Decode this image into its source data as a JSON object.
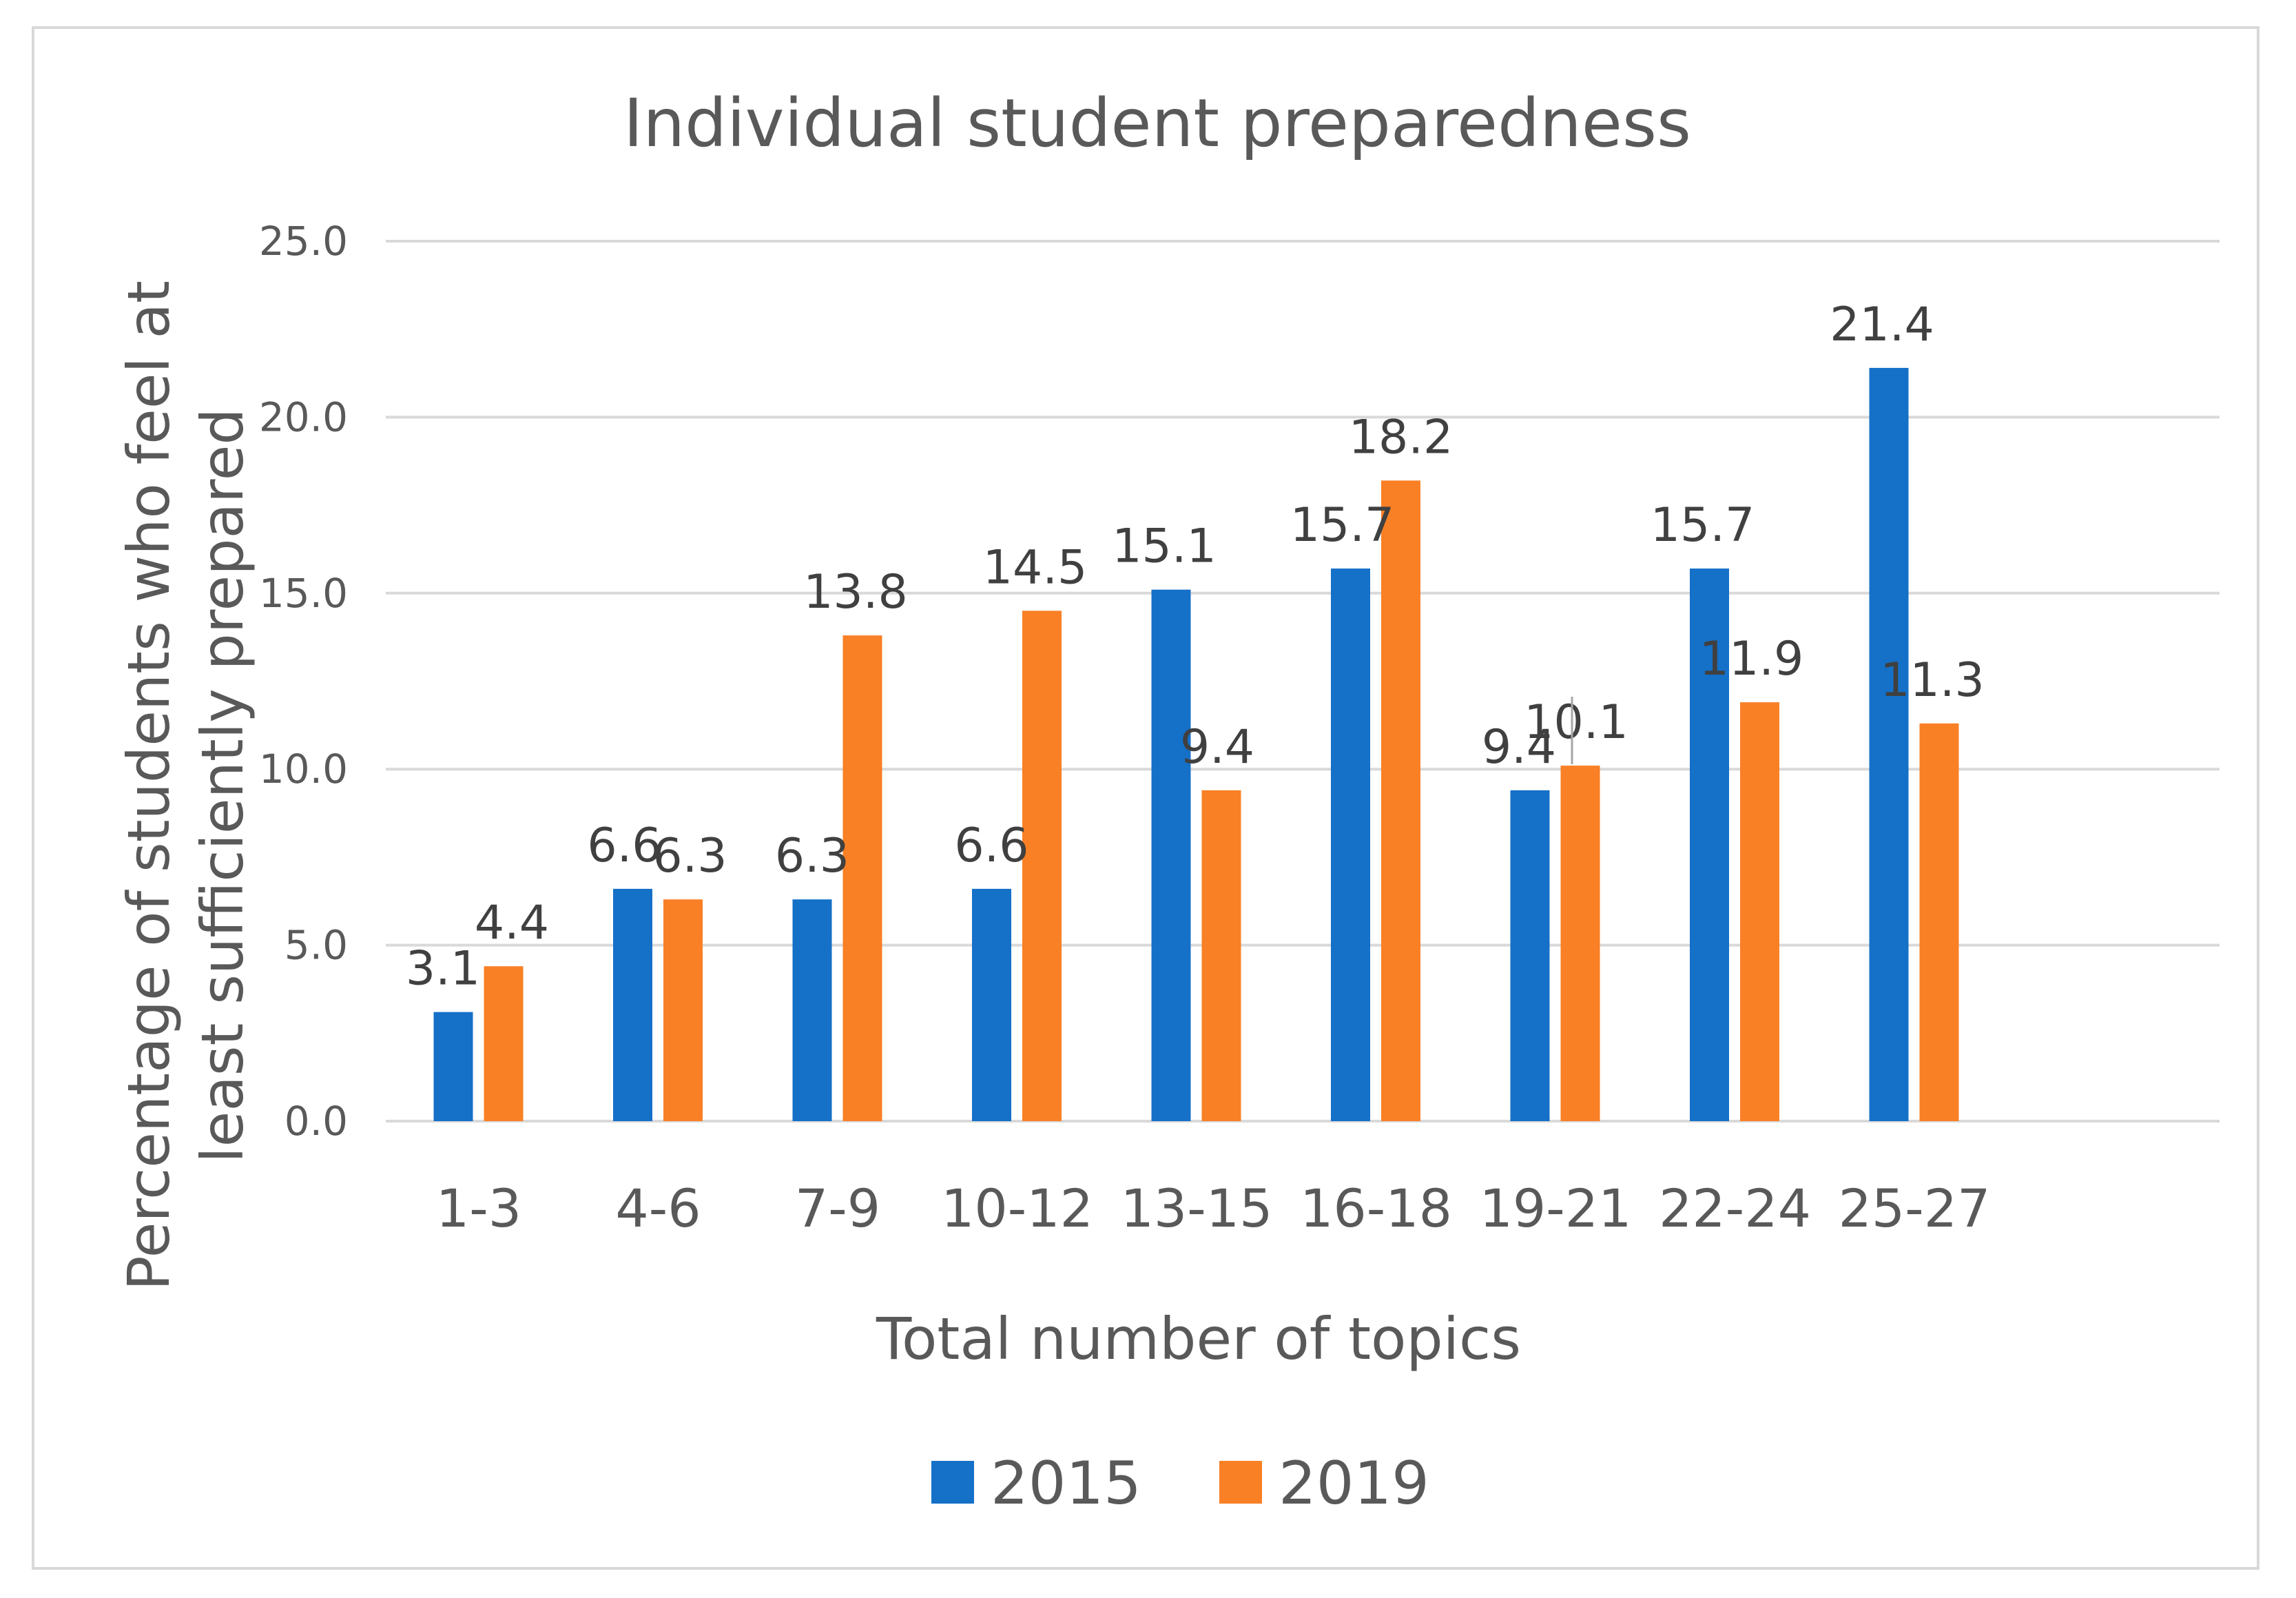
{
  "chart_data": {
    "type": "bar",
    "title": "Individual student preparedness",
    "xlabel": "Total number of topics",
    "ylabel_lines": [
      "Percentage of students who feel at",
      "least sufficiently prepared"
    ],
    "categories": [
      "1-3",
      "4-6",
      "7-9",
      "10-12",
      "13-15",
      "16-18",
      "19-21",
      "22-24",
      "25-27"
    ],
    "series": [
      {
        "name": "2015",
        "color": "#1570C8",
        "values": [
          3.1,
          6.6,
          6.3,
          6.6,
          15.1,
          15.7,
          9.4,
          15.7,
          21.4
        ],
        "value_labels": [
          "3.1",
          "6.6",
          "6.3",
          "6.6",
          "15.1",
          "15.7",
          "9.4",
          "15.7",
          "21.4"
        ]
      },
      {
        "name": "2019",
        "color": "#F98025",
        "values": [
          4.4,
          6.3,
          13.8,
          14.5,
          9.4,
          18.2,
          10.1,
          11.9,
          11.3
        ],
        "value_labels": [
          "4.4",
          "6.3",
          "13.8",
          "14.5",
          "9.4",
          "18.2",
          "10.1",
          "11.9",
          "11.3"
        ]
      }
    ],
    "ylim": [
      0,
      25
    ],
    "yticks": [
      0,
      5,
      10,
      15,
      20,
      25
    ],
    "ytick_labels": [
      "0.0",
      "5.0",
      "10.0",
      "15.0",
      "20.0",
      "25.0"
    ],
    "grid": true,
    "legend_position": "bottom-center",
    "gridline_color": "#d9d9d9"
  }
}
